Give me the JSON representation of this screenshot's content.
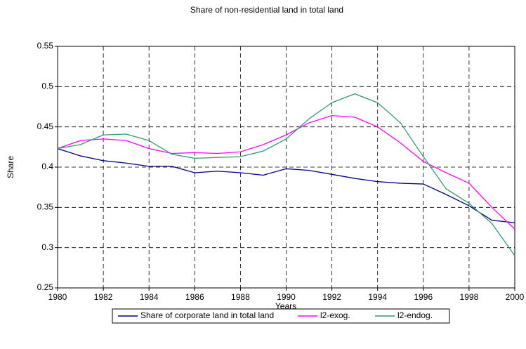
{
  "chart_data": {
    "type": "line",
    "title": "Share of non-residential land in total land",
    "xlabel": "Years",
    "ylabel": "Share",
    "x": [
      1980,
      1981,
      1982,
      1983,
      1984,
      1985,
      1986,
      1987,
      1988,
      1989,
      1990,
      1991,
      1992,
      1993,
      1994,
      1995,
      1996,
      1997,
      1998,
      1999,
      2000
    ],
    "series": [
      {
        "name": "Share of corporate land in total land",
        "color": "#000080",
        "values": [
          0.423,
          0.414,
          0.408,
          0.405,
          0.401,
          0.401,
          0.393,
          0.395,
          0.393,
          0.39,
          0.398,
          0.396,
          0.391,
          0.386,
          0.382,
          0.38,
          0.379,
          0.366,
          0.352,
          0.334,
          0.331
        ]
      },
      {
        "name": "l2-exog.",
        "color": "#ff00ff",
        "values": [
          0.423,
          0.433,
          0.435,
          0.433,
          0.423,
          0.417,
          0.418,
          0.417,
          0.419,
          0.428,
          0.44,
          0.455,
          0.464,
          0.462,
          0.45,
          0.43,
          0.407,
          0.393,
          0.38,
          0.35,
          0.323
        ]
      },
      {
        "name": "l2-endog.",
        "color": "#339977",
        "values": [
          0.423,
          0.428,
          0.44,
          0.441,
          0.433,
          0.416,
          0.411,
          0.412,
          0.413,
          0.42,
          0.435,
          0.46,
          0.48,
          0.491,
          0.48,
          0.455,
          0.413,
          0.373,
          0.355,
          0.33,
          0.29
        ]
      }
    ],
    "xlim": [
      1980,
      2000
    ],
    "xticks": [
      1980,
      1982,
      1984,
      1986,
      1988,
      1990,
      1992,
      1994,
      1996,
      1998,
      2000
    ],
    "ylim": [
      0.25,
      0.55
    ],
    "yticks": [
      0.25,
      0.3,
      0.35,
      0.4,
      0.45,
      0.5,
      0.55
    ],
    "grid": true,
    "legend": "bottom"
  }
}
